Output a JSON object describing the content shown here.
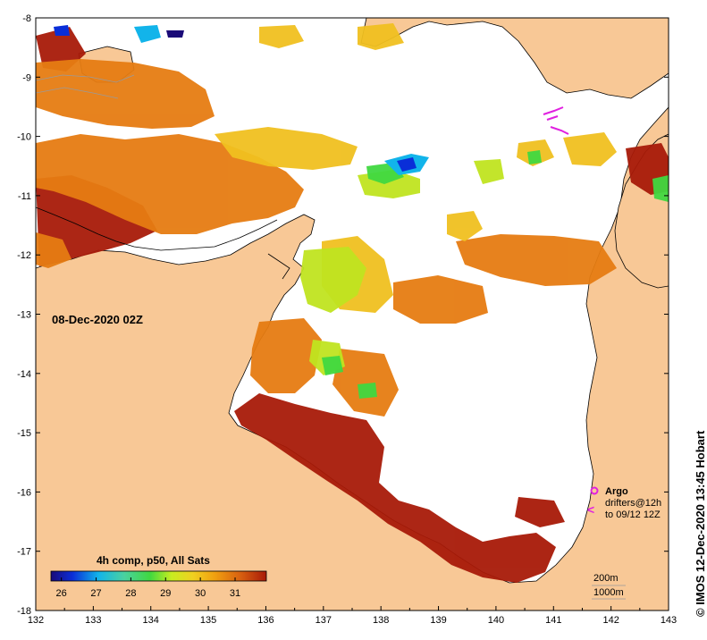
{
  "map": {
    "date_label": "08-Dec-2020 02Z",
    "credit": "© IMOS 12-Dec-2020 13:45 Hobart",
    "colorbar": {
      "title": "4h comp, p50, All Sats",
      "ticks": [
        "26",
        "27",
        "28",
        "29",
        "30",
        "31"
      ],
      "min": 25.7,
      "max": 31.9,
      "stops": [
        "#1a0a78",
        "#0a2ed8",
        "#12b4ea",
        "#4ad2a0",
        "#40d840",
        "#c8ec20",
        "#f0d020",
        "#f0a010",
        "#d86010",
        "#a81a08"
      ]
    },
    "axes": {
      "lon_ticks": [
        "132",
        "133",
        "134",
        "135",
        "136",
        "137",
        "138",
        "139",
        "140",
        "141",
        "142",
        "143"
      ],
      "lat_ticks": [
        "-8",
        "-9",
        "-10",
        "-11",
        "-12",
        "-13",
        "-14",
        "-15",
        "-16",
        "-17",
        "-18"
      ],
      "lon_range": [
        132,
        143
      ],
      "lat_range": [
        -18,
        -8
      ]
    },
    "legend": {
      "argo_label": "Argo",
      "drifter_label_line1": "drifters@12h",
      "drifter_label_line2": "to 09/12 12Z"
    },
    "contours": {
      "line1": "200m",
      "line2": "1000m"
    },
    "colors": {
      "land": "#f8c896",
      "sea_nodata": "#ffffff",
      "argo": "#e020e0",
      "drifter": "#e020e0"
    }
  }
}
